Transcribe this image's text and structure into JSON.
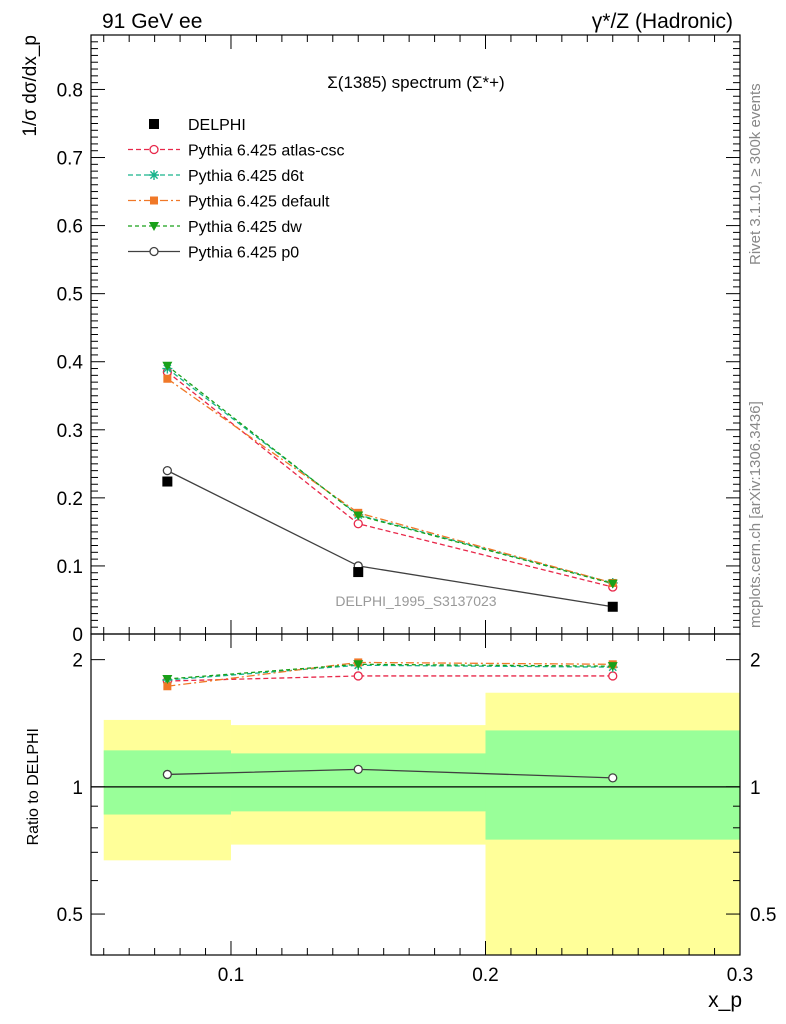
{
  "header": {
    "left": "91 GeV ee",
    "right": "γ*/Z (Hadronic)"
  },
  "side": {
    "rivet": "Rivet 3.1.10, ≥ 300k events",
    "mcplots": "mcplots.cern.ch [arXiv:1306.3436]"
  },
  "chart_data": [
    {
      "type": "line",
      "title": "Σ(1385) spectrum (Σ*+)",
      "ylabel": "1/σ dσ/dx_p",
      "xlabel": "",
      "watermark": "DELPHI_1995_S3137023",
      "xlim": [
        0.045,
        0.3
      ],
      "ylim": [
        0,
        0.88
      ],
      "yticks": [
        0,
        0.1,
        0.2,
        0.3,
        0.4,
        0.5,
        0.6,
        0.7,
        0.8
      ],
      "ytick_labels": [
        "0",
        "0.1",
        "0.2",
        "0.3",
        "0.4",
        "0.5",
        "0.6",
        "0.7",
        "0.8"
      ],
      "x": [
        0.075,
        0.15,
        0.25
      ],
      "bin_edges": [
        0.05,
        0.1,
        0.2,
        0.3
      ],
      "legend_position": "top-left",
      "data": {
        "name": "DELPHI",
        "values": [
          0.224,
          0.091,
          0.04
        ]
      },
      "series": [
        {
          "name": "Pythia 6.425 atlas-csc",
          "values": [
            0.385,
            0.162,
            0.069
          ],
          "color": "#e8284a",
          "marker": "circle-open",
          "dash": "5,3"
        },
        {
          "name": "Pythia 6.425 d6t",
          "values": [
            0.39,
            0.175,
            0.075
          ],
          "color": "#19b48c",
          "marker": "star",
          "dash": "5,3"
        },
        {
          "name": "Pythia 6.425 default",
          "values": [
            0.375,
            0.178,
            0.075
          ],
          "color": "#f07828",
          "marker": "square",
          "dash": "8,3,2,3"
        },
        {
          "name": "Pythia 6.425 dw",
          "values": [
            0.394,
            0.174,
            0.074
          ],
          "color": "#19a019",
          "marker": "triangle-down",
          "dash": "4,3"
        },
        {
          "name": "Pythia 6.425 p0",
          "values": [
            0.24,
            0.1,
            0.04
          ],
          "color": "#404040",
          "marker": "circle-open",
          "dash": ""
        }
      ]
    },
    {
      "type": "line",
      "title": "",
      "ylabel": "Ratio to DELPHI",
      "xlabel": "x_p",
      "xlim": [
        0.045,
        0.3
      ],
      "ylim": [
        0.4,
        2.3
      ],
      "yticks": [
        0.5,
        1,
        2
      ],
      "ytick_labels": [
        "0.5",
        "1",
        "2"
      ],
      "xticks": [
        0.1,
        0.2,
        0.3
      ],
      "xtick_labels": [
        "0.1",
        "0.2",
        "0.3"
      ],
      "x": [
        0.075,
        0.15,
        0.25
      ],
      "bands": {
        "green": [
          [
            0.86,
            1.22
          ],
          [
            0.875,
            1.2
          ],
          [
            0.75,
            1.36
          ]
        ],
        "yellow": [
          [
            0.67,
            1.44
          ],
          [
            0.73,
            1.4
          ],
          [
            0.36,
            1.67
          ]
        ]
      },
      "series": [
        {
          "name": "Pythia 6.425 atlas-csc",
          "values": [
            1.78,
            1.83,
            1.83
          ]
        },
        {
          "name": "Pythia 6.425 d6t",
          "values": [
            1.79,
            1.94,
            1.92
          ]
        },
        {
          "name": "Pythia 6.425 default",
          "values": [
            1.73,
            1.97,
            1.95
          ]
        },
        {
          "name": "Pythia 6.425 dw",
          "values": [
            1.8,
            1.95,
            1.93
          ]
        },
        {
          "name": "Pythia 6.425 p0",
          "values": [
            1.07,
            1.1,
            1.05
          ]
        }
      ]
    }
  ]
}
